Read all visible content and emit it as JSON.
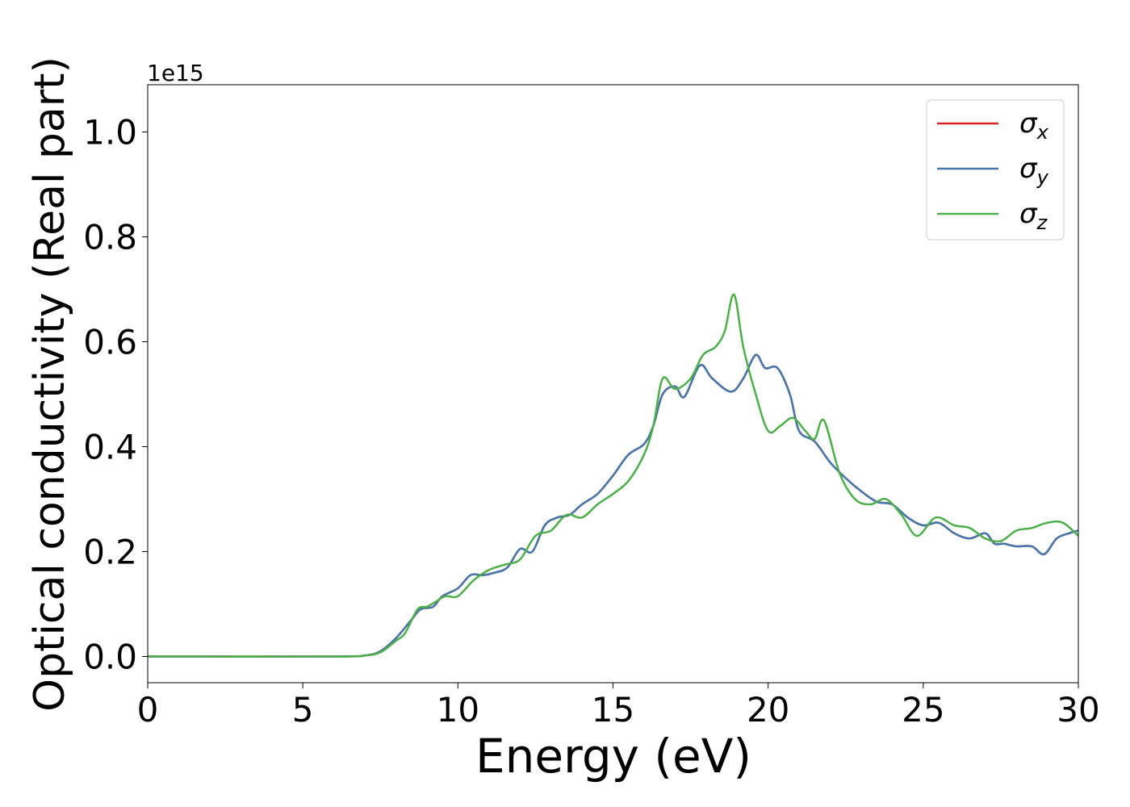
{
  "chart_data": {
    "type": "line",
    "title": "",
    "xlabel": "Energy (eV)",
    "ylabel": "Optical conductivity (Real part)",
    "y_multiplier": "1e15",
    "xlim": [
      0,
      30
    ],
    "ylim": [
      -0.05,
      1.09
    ],
    "xticks": [
      0,
      5,
      10,
      15,
      20,
      25,
      30
    ],
    "xtick_labels": [
      "0",
      "5",
      "10",
      "15",
      "20",
      "25",
      "30"
    ],
    "yticks": [
      0.0,
      0.2,
      0.4,
      0.6,
      0.8,
      1.0
    ],
    "ytick_labels": [
      "0.0",
      "0.2",
      "0.4",
      "0.6",
      "0.8",
      "1.0"
    ],
    "grid": false,
    "legend_position": "top-right",
    "series": [
      {
        "name": "σ_x",
        "symbol": "σ",
        "subscript": "x",
        "color": "#d62728",
        "x": [
          0,
          6,
          7,
          7.5,
          8,
          8.5,
          8.8,
          9.2,
          9.5,
          10,
          10.4,
          10.8,
          11.2,
          11.6,
          12,
          12.4,
          12.8,
          13.2,
          13.6,
          14,
          14.5,
          15,
          15.5,
          16,
          16.3,
          16.6,
          17,
          17.3,
          17.8,
          18.2,
          18.8,
          19.2,
          19.6,
          19.9,
          20.3,
          20.7,
          21,
          21.5,
          22,
          22.5,
          23,
          23.5,
          24,
          24.5,
          25,
          25.5,
          26,
          26.5,
          27,
          27.3,
          27.6,
          28,
          28.5,
          28.9,
          29.3,
          29.7,
          30
        ],
        "values": [
          0,
          0,
          0.002,
          0.01,
          0.035,
          0.07,
          0.09,
          0.095,
          0.115,
          0.13,
          0.155,
          0.155,
          0.16,
          0.17,
          0.205,
          0.2,
          0.25,
          0.265,
          0.27,
          0.29,
          0.31,
          0.345,
          0.385,
          0.405,
          0.44,
          0.5,
          0.515,
          0.495,
          0.555,
          0.53,
          0.505,
          0.53,
          0.575,
          0.55,
          0.55,
          0.5,
          0.43,
          0.41,
          0.37,
          0.34,
          0.315,
          0.295,
          0.29,
          0.265,
          0.25,
          0.255,
          0.235,
          0.225,
          0.235,
          0.215,
          0.215,
          0.21,
          0.21,
          0.195,
          0.225,
          0.235,
          0.24
        ]
      },
      {
        "name": "σ_y",
        "symbol": "σ",
        "subscript": "y",
        "color": "#4477aa",
        "x": [
          0,
          6,
          7,
          7.5,
          8,
          8.5,
          8.8,
          9.2,
          9.5,
          10,
          10.4,
          10.8,
          11.2,
          11.6,
          12,
          12.4,
          12.8,
          13.2,
          13.6,
          14,
          14.5,
          15,
          15.5,
          16,
          16.3,
          16.6,
          17,
          17.3,
          17.8,
          18.2,
          18.8,
          19.2,
          19.6,
          19.9,
          20.3,
          20.7,
          21,
          21.5,
          22,
          22.5,
          23,
          23.5,
          24,
          24.5,
          25,
          25.5,
          26,
          26.5,
          27,
          27.3,
          27.6,
          28,
          28.5,
          28.9,
          29.3,
          29.7,
          30
        ],
        "values": [
          0,
          0,
          0.002,
          0.01,
          0.035,
          0.07,
          0.09,
          0.095,
          0.115,
          0.13,
          0.155,
          0.155,
          0.16,
          0.17,
          0.205,
          0.2,
          0.25,
          0.265,
          0.27,
          0.29,
          0.31,
          0.345,
          0.385,
          0.405,
          0.44,
          0.5,
          0.515,
          0.495,
          0.555,
          0.53,
          0.505,
          0.53,
          0.575,
          0.55,
          0.55,
          0.5,
          0.43,
          0.41,
          0.37,
          0.34,
          0.315,
          0.295,
          0.29,
          0.265,
          0.25,
          0.255,
          0.235,
          0.225,
          0.235,
          0.215,
          0.215,
          0.21,
          0.21,
          0.195,
          0.225,
          0.235,
          0.24
        ]
      },
      {
        "name": "σ_z",
        "symbol": "σ",
        "subscript": "z",
        "color": "#4daf4a",
        "x": [
          0,
          6,
          7,
          7.5,
          8,
          8.3,
          8.7,
          9,
          9.3,
          9.6,
          10,
          10.5,
          11,
          11.5,
          12,
          12.5,
          13,
          13.5,
          14,
          14.5,
          15,
          15.5,
          16,
          16.3,
          16.6,
          17,
          17.5,
          17.9,
          18.3,
          18.6,
          18.9,
          19.2,
          19.6,
          20,
          20.4,
          20.8,
          21.2,
          21.5,
          21.8,
          22.3,
          22.8,
          23.3,
          23.8,
          24.3,
          24.8,
          25.4,
          26,
          26.5,
          27,
          27.5,
          28,
          28.5,
          29,
          29.5,
          30
        ],
        "values": [
          0,
          0,
          0.002,
          0.008,
          0.03,
          0.045,
          0.09,
          0.095,
          0.105,
          0.115,
          0.115,
          0.145,
          0.165,
          0.175,
          0.185,
          0.23,
          0.24,
          0.27,
          0.265,
          0.29,
          0.31,
          0.335,
          0.385,
          0.44,
          0.53,
          0.51,
          0.53,
          0.575,
          0.59,
          0.62,
          0.69,
          0.59,
          0.5,
          0.43,
          0.44,
          0.455,
          0.43,
          0.415,
          0.45,
          0.35,
          0.3,
          0.29,
          0.3,
          0.27,
          0.23,
          0.265,
          0.25,
          0.245,
          0.225,
          0.22,
          0.24,
          0.245,
          0.255,
          0.255,
          0.23
        ]
      }
    ]
  }
}
